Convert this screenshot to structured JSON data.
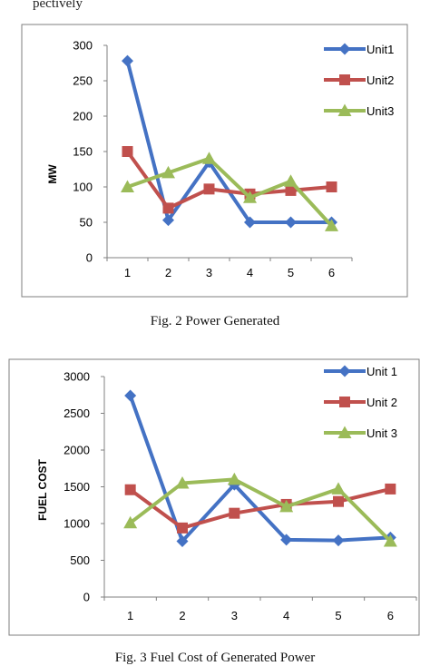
{
  "top_text": "pectively",
  "chart_data": [
    {
      "type": "line",
      "title": "",
      "xlabel": "",
      "ylabel": "MW",
      "categories": [
        "1",
        "2",
        "3",
        "4",
        "5",
        "6"
      ],
      "ylim": [
        0,
        300
      ],
      "yticks": [
        "0",
        "50",
        "100",
        "150",
        "200",
        "250",
        "300"
      ],
      "legend_position": "top-right",
      "grid": false,
      "series": [
        {
          "name": "Unit1",
          "color": "#4472C4",
          "marker": "diamond",
          "values": [
            278,
            53,
            135,
            50,
            50,
            50
          ]
        },
        {
          "name": "Unit2",
          "color": "#C0504D",
          "marker": "square",
          "values": [
            150,
            70,
            97,
            90,
            95,
            100
          ]
        },
        {
          "name": "Unit3",
          "color": "#9BBB59",
          "marker": "triangle",
          "values": [
            100,
            120,
            140,
            85,
            108,
            45
          ]
        }
      ],
      "caption": "Fig. 2 Power Generated"
    },
    {
      "type": "line",
      "title": "",
      "xlabel": "",
      "ylabel": "FUEL COST",
      "categories": [
        "1",
        "2",
        "3",
        "4",
        "5",
        "6"
      ],
      "ylim": [
        0,
        3000
      ],
      "yticks": [
        "0",
        "500",
        "1000",
        "1500",
        "2000",
        "2500",
        "3000"
      ],
      "legend_position": "top-right",
      "grid": false,
      "series": [
        {
          "name": "Unit 1",
          "color": "#4472C4",
          "marker": "diamond",
          "values": [
            2740,
            760,
            1530,
            780,
            770,
            810
          ]
        },
        {
          "name": "Unit 2",
          "color": "#C0504D",
          "marker": "square",
          "values": [
            1460,
            940,
            1140,
            1260,
            1300,
            1470
          ]
        },
        {
          "name": "Unit 3",
          "color": "#9BBB59",
          "marker": "triangle",
          "values": [
            1010,
            1550,
            1600,
            1230,
            1470,
            760
          ]
        }
      ],
      "caption": "Fig. 3 Fuel Cost of Generated Power"
    }
  ]
}
